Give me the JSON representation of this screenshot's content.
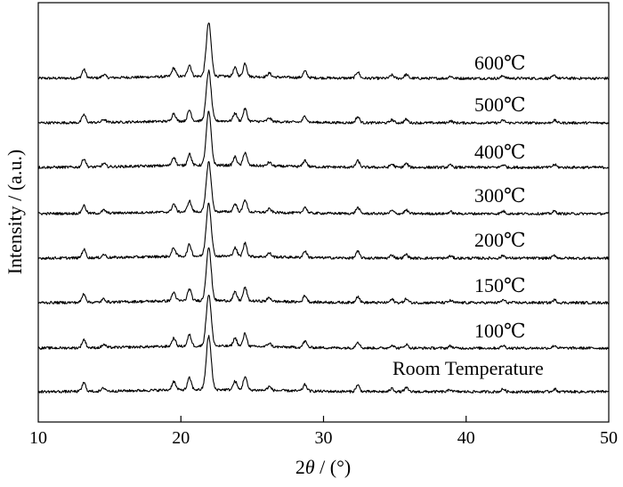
{
  "chart_data": {
    "type": "line",
    "xlabel_parts": [
      "2",
      "θ",
      " / (°)"
    ],
    "ylabel": "Intensity / (a.u.)",
    "xlim": [
      10,
      50
    ],
    "x_ticks": [
      10,
      20,
      30,
      40,
      50
    ],
    "y_ticks_shown": false,
    "grid": false,
    "line_color": "#000000",
    "peaks_2theta": [
      13.2,
      14.6,
      19.5,
      20.6,
      21.95,
      23.8,
      24.5,
      26.2,
      28.7,
      32.4,
      34.8,
      35.8,
      38.9,
      42.6,
      46.2
    ],
    "peak_intensities": [
      0.16,
      0.06,
      0.16,
      0.22,
      1.0,
      0.16,
      0.25,
      0.07,
      0.12,
      0.12,
      0.06,
      0.07,
      0.04,
      0.05,
      0.05
    ],
    "series": [
      {
        "name": "600℃"
      },
      {
        "name": "500℃"
      },
      {
        "name": "400℃"
      },
      {
        "name": "300℃"
      },
      {
        "name": "200℃"
      },
      {
        "name": "150℃"
      },
      {
        "name": "100℃"
      },
      {
        "name": "Room Temperature"
      }
    ]
  }
}
